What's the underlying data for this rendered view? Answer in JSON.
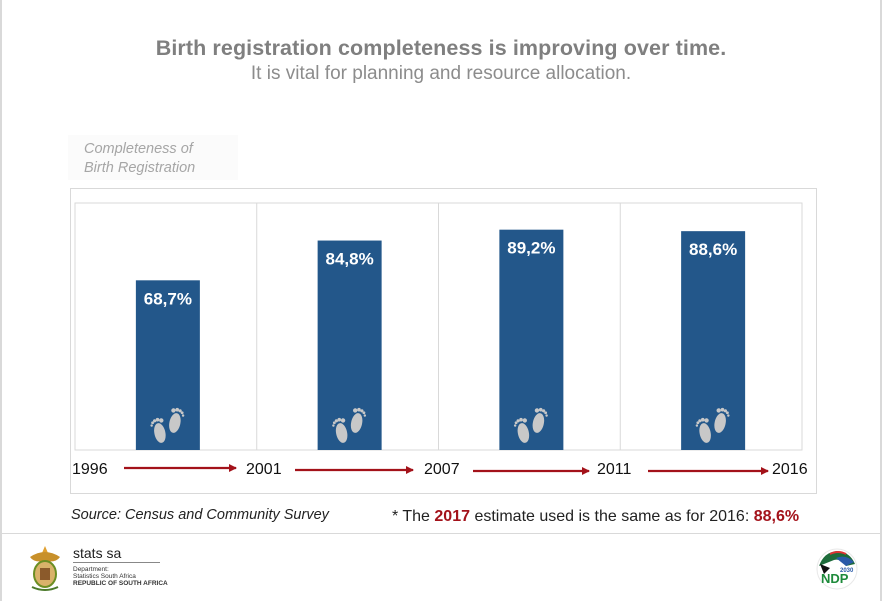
{
  "header": {
    "title": "Birth registration completeness is improving over time.",
    "subtitle": "It is vital for planning and resource allocation."
  },
  "chart_data": {
    "type": "bar",
    "title": "Birth registration completeness is improving over time.",
    "subtitle": "It is vital for planning and resource allocation.",
    "ylabel": "Completeness of Birth Registration",
    "xlabel": "",
    "categories": [
      "1996–2001",
      "2001–2007",
      "2007–2011",
      "2011–2016"
    ],
    "values": [
      68.7,
      84.8,
      89.2,
      88.6
    ],
    "data_labels": [
      "68,7%",
      "84,8%",
      "89,2%",
      "88,6%"
    ],
    "timeline_years": [
      "1996",
      "2001",
      "2007",
      "2011",
      "2016"
    ],
    "ylim": [
      0,
      100
    ],
    "grid": "vertical separators",
    "bar_color": "#23578a",
    "arrow_color": "#a3121a",
    "bar_icon": "baby-footprints-icon"
  },
  "footer": {
    "source": "Source: Census and Community Survey",
    "note_prefix": "* The ",
    "note_year": "2017",
    "note_middle": " estimate used is the same as for 2016: ",
    "note_value": "88,6%",
    "highlight_color": "#a3121a"
  },
  "logos": {
    "stats_name": "stats sa",
    "stats_line1": "Department:",
    "stats_line2": "Statistics South Africa",
    "stats_line3": "REPUBLIC OF SOUTH AFRICA",
    "ndp_text": "NDP",
    "ndp_year": "2030"
  }
}
